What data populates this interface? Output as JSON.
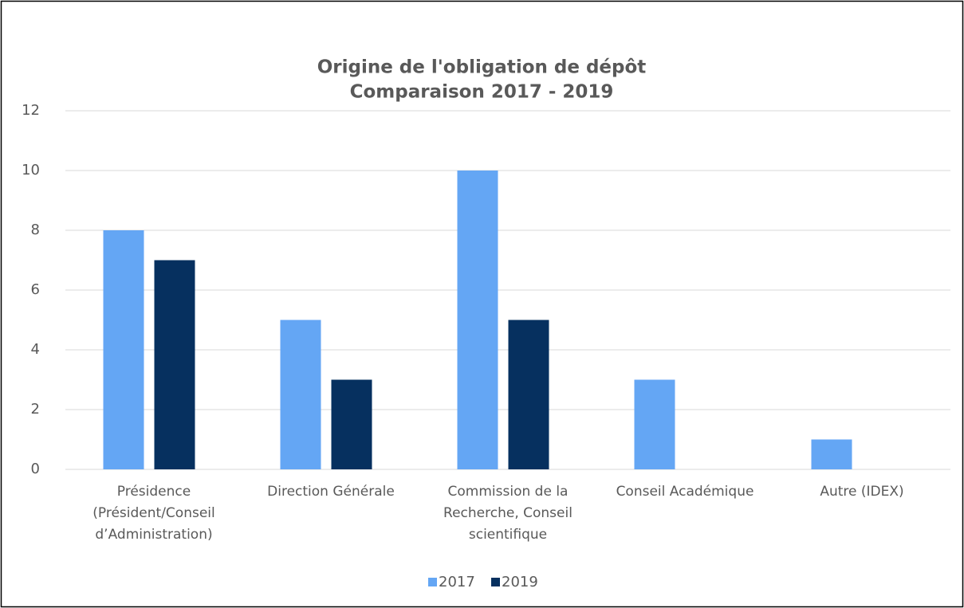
{
  "chart_data": {
    "type": "bar",
    "title": "Origine de l'obligation de dépôt",
    "subtitle": "Comparaison 2017 - 2019",
    "categories": [
      "Présidence (Président/Conseil d’Administration)",
      "Direction Générale",
      "Commission de la Recherche, Conseil scientifique",
      "Conseil Académique",
      "Autre (IDEX)"
    ],
    "series": [
      {
        "name": "2017",
        "color": "#64a6f4",
        "values": [
          8,
          5,
          10,
          3,
          1
        ]
      },
      {
        "name": "2019",
        "color": "#06305f",
        "values": [
          7,
          3,
          5,
          0,
          0
        ]
      }
    ],
    "ylim": [
      0,
      12
    ],
    "yticks": [
      0,
      2,
      4,
      6,
      8,
      10,
      12
    ],
    "grid": true,
    "legend": "bottom"
  }
}
